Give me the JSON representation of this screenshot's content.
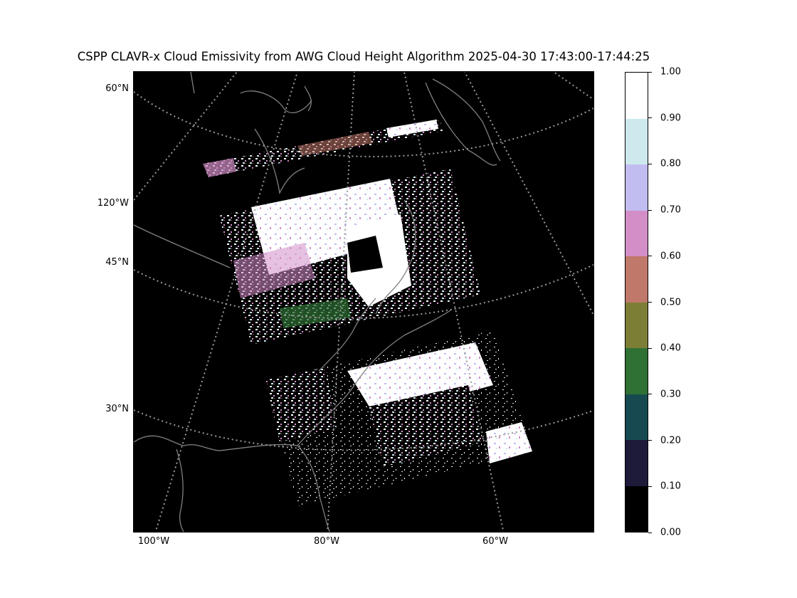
{
  "title": "CSPP CLAVR-x Cloud Emissivity from AWG Cloud Height Algorithm 2025-04-30 17:43:00-17:44:25",
  "map": {
    "projection": "lambert-conformal",
    "background_color": "#000000",
    "coastline_color": "#808080",
    "graticule_color": "#9a9a9a",
    "lat_labels": [
      "60°N",
      "45°N",
      "30°N"
    ],
    "lon_labels_left": [
      "120°W"
    ],
    "lon_labels_bottom": [
      "100°W",
      "80°W",
      "60°W"
    ],
    "swaths": [
      {
        "name": "north-swath",
        "dominant_value": 0.95
      },
      {
        "name": "middle-swath",
        "dominant_value": 0.95
      },
      {
        "name": "south-swath",
        "dominant_value": 0.95
      }
    ]
  },
  "colorbar": {
    "tick_labels": [
      "0.00",
      "0.10",
      "0.20",
      "0.30",
      "0.40",
      "0.50",
      "0.60",
      "0.70",
      "0.80",
      "0.90",
      "1.00"
    ],
    "colors": [
      "#000000",
      "#1e1a3a",
      "#164a50",
      "#2f7034",
      "#7c7e36",
      "#bf786a",
      "#d38ec8",
      "#c2bdf0",
      "#cde9ee",
      "#ffffff"
    ]
  }
}
